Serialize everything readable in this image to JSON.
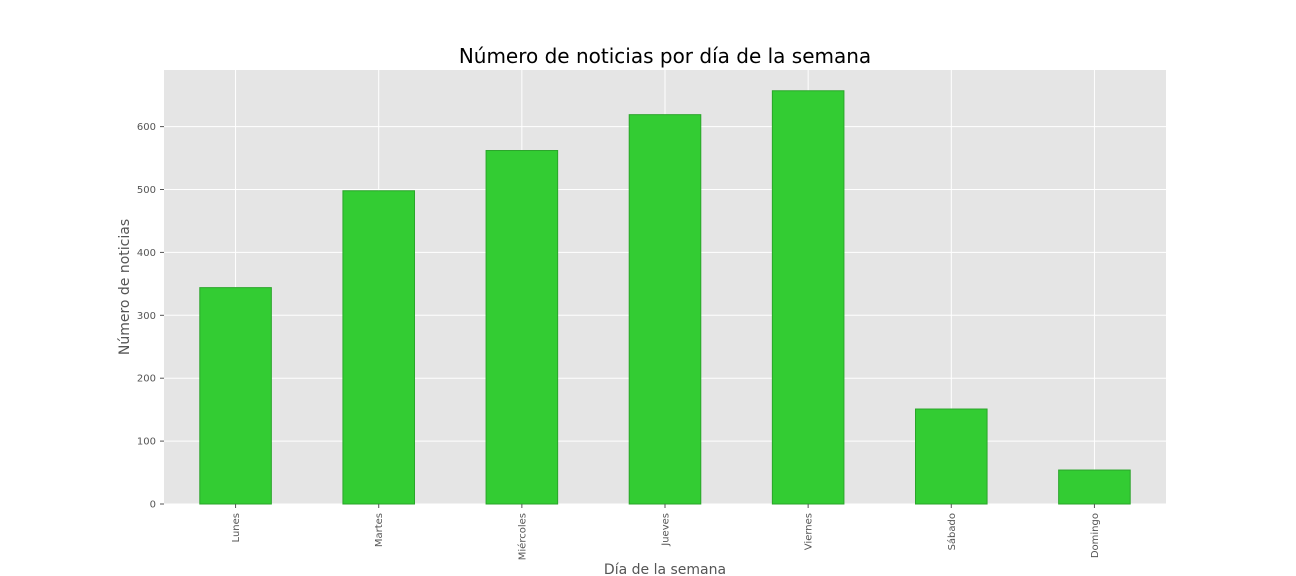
{
  "chart_data": {
    "type": "bar",
    "title": "Número de noticias por día de la semana",
    "xlabel": "Día de la semana",
    "ylabel": "Número de noticias",
    "categories": [
      "Lunes",
      "Martes",
      "Miércoles",
      "Jueves",
      "Viernes",
      "Sábado",
      "Domingo"
    ],
    "values": [
      344,
      498,
      562,
      619,
      657,
      151,
      54
    ],
    "ylim": [
      0,
      690
    ],
    "yticks": [
      0,
      100,
      200,
      300,
      400,
      500,
      600
    ],
    "grid": true,
    "legend": "none",
    "colors": {
      "bar": "#33cc33",
      "bar_edge": "#2aa52a",
      "plot_background": "#e5e5e5",
      "grid": "#ffffff"
    }
  }
}
